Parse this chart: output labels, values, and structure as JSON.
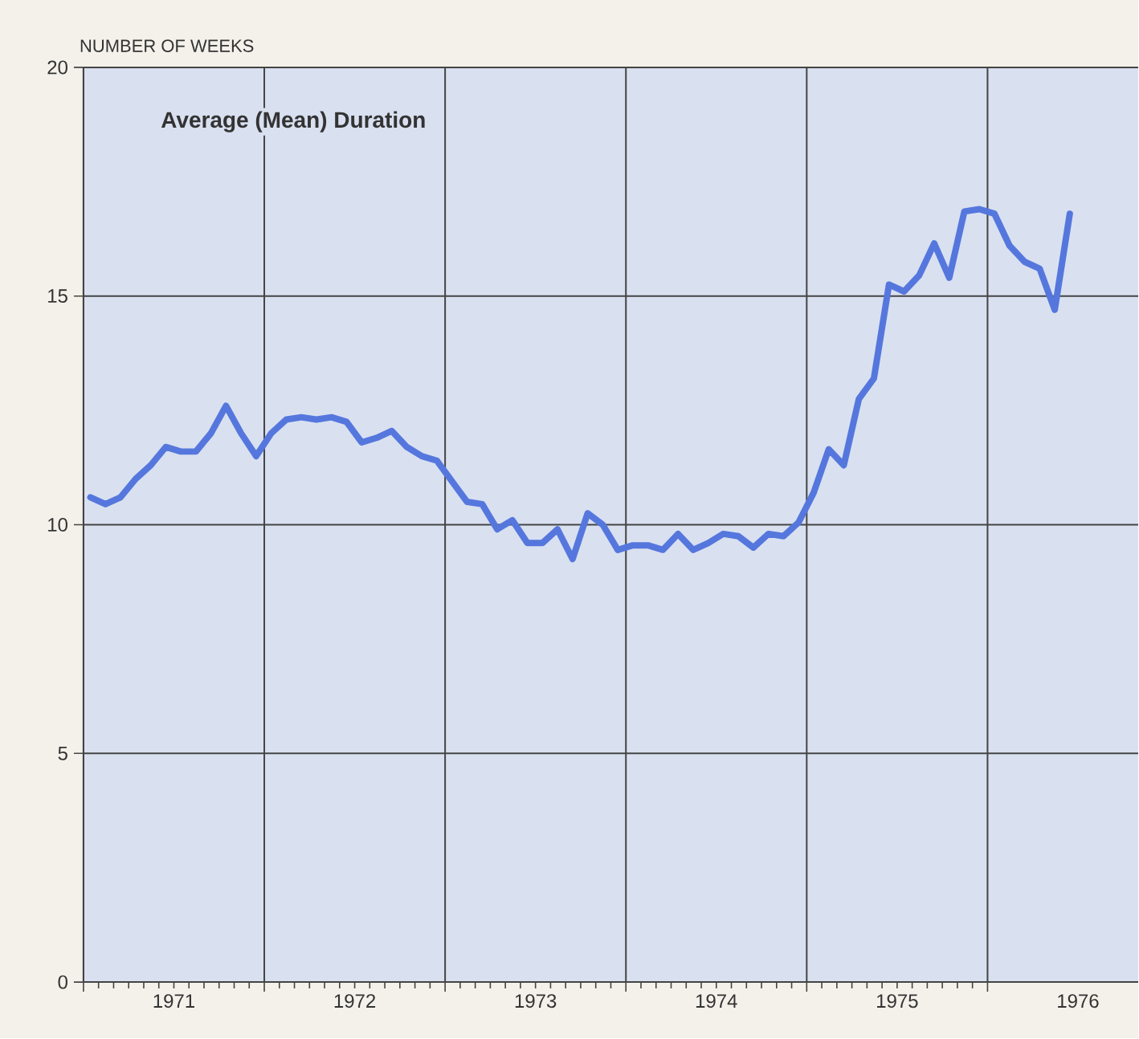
{
  "chart_data": {
    "type": "line",
    "title": "Average (Mean) Duration",
    "ylabel": "NUMBER OF WEEKS",
    "x": [
      "1971-01-15",
      "1971-02-15",
      "1971-03-15",
      "1971-04-15",
      "1971-05-15",
      "1971-06-15",
      "1971-07-15",
      "1971-08-15",
      "1971-09-15",
      "1971-10-15",
      "1971-11-15",
      "1971-12-15",
      "1972-01-15",
      "1972-02-15",
      "1972-03-15",
      "1972-04-15",
      "1972-05-15",
      "1972-06-15",
      "1972-07-15",
      "1972-08-15",
      "1972-09-15",
      "1972-10-15",
      "1972-11-15",
      "1972-12-15",
      "1973-01-15",
      "1973-02-15",
      "1973-03-15",
      "1973-04-15",
      "1973-05-15",
      "1973-06-15",
      "1973-07-15",
      "1973-08-15",
      "1973-09-15",
      "1973-10-15",
      "1973-11-15",
      "1973-12-15",
      "1974-01-15",
      "1974-02-15",
      "1974-03-15",
      "1974-04-15",
      "1974-05-15",
      "1974-06-15",
      "1974-07-15",
      "1974-08-15",
      "1974-09-15",
      "1974-10-15",
      "1974-11-15",
      "1974-12-15",
      "1975-01-15",
      "1975-02-15",
      "1975-03-15",
      "1975-04-15",
      "1975-05-15",
      "1975-06-15",
      "1975-07-15",
      "1975-08-15",
      "1975-09-15",
      "1975-10-15",
      "1975-11-15",
      "1975-12-15",
      "1976-01-15",
      "1976-02-15",
      "1976-03-15",
      "1976-04-15",
      "1976-05-15",
      "1976-06-15"
    ],
    "series": [
      {
        "color": "#5577dd",
        "values": [
          10.6,
          10.45,
          10.6,
          11.0,
          11.3,
          11.7,
          11.6,
          11.6,
          12.0,
          12.6,
          12.0,
          11.5,
          12.0,
          12.3,
          12.35,
          12.3,
          12.35,
          12.25,
          11.8,
          11.9,
          12.05,
          11.7,
          11.5,
          11.4,
          10.95,
          10.5,
          10.45,
          9.9,
          10.1,
          9.6,
          9.6,
          9.9,
          9.25,
          10.25,
          10.0,
          9.45,
          9.55,
          9.55,
          9.45,
          9.8,
          9.45,
          9.6,
          9.8,
          9.75,
          9.5,
          9.8,
          9.75,
          10.05,
          10.7,
          11.65,
          11.3,
          12.75,
          13.2,
          15.25,
          15.1,
          15.45,
          16.15,
          15.4,
          16.85,
          16.9,
          16.8,
          16.1,
          15.75,
          15.6,
          14.7,
          16.8
        ]
      }
    ],
    "xlim": [
      "1971-01",
      "1976-11"
    ],
    "xticks": [
      {
        "value": "1971-01",
        "label": null
      },
      {
        "value": "1971-07",
        "label": "1971"
      },
      {
        "value": "1972-01",
        "label": null
      },
      {
        "value": "1972-07",
        "label": "1972"
      },
      {
        "value": "1973-01",
        "label": null
      },
      {
        "value": "1973-07",
        "label": "1973"
      },
      {
        "value": "1974-01",
        "label": null
      },
      {
        "value": "1974-07",
        "label": "1974"
      },
      {
        "value": "1975-01",
        "label": null
      },
      {
        "value": "1975-07",
        "label": "1975"
      },
      {
        "value": "1976-01",
        "label": null
      },
      {
        "value": "1976-07",
        "label": "1976"
      }
    ],
    "ylim": [
      0,
      20
    ],
    "yticks": [
      0,
      5,
      10,
      15,
      20
    ],
    "grid": true,
    "line_style": "solid"
  }
}
